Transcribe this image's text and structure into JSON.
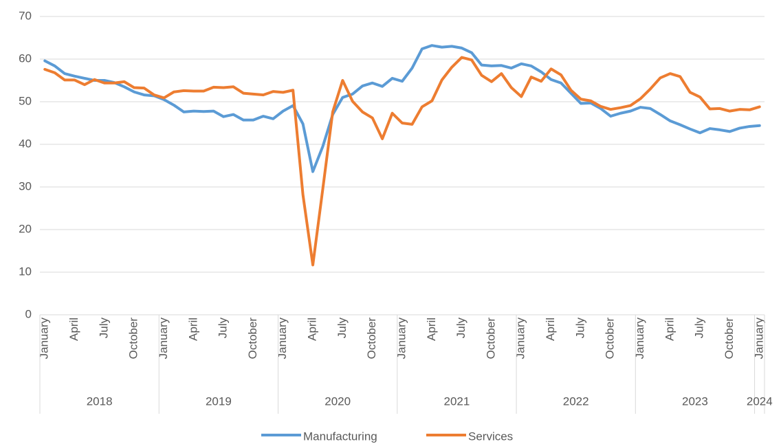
{
  "chart_data": {
    "type": "line",
    "categories": [
      "January",
      null,
      null,
      "April",
      null,
      null,
      "July",
      null,
      null,
      "October",
      null,
      null,
      "January",
      null,
      null,
      "April",
      null,
      null,
      "July",
      null,
      null,
      "October",
      null,
      null,
      "January",
      null,
      null,
      "April",
      null,
      null,
      "July",
      null,
      null,
      "October",
      null,
      null,
      "January",
      null,
      null,
      "April",
      null,
      null,
      "July",
      null,
      null,
      "October",
      null,
      null,
      "January",
      null,
      null,
      "April",
      null,
      null,
      "July",
      null,
      null,
      "October",
      null,
      null,
      "January",
      null,
      null,
      "April",
      null,
      null,
      "July",
      null,
      null,
      "October",
      null,
      null,
      "January"
    ],
    "category_groups": [
      "2018",
      "2019",
      "2020",
      "2021",
      "2022",
      "2023",
      "2024"
    ],
    "series": [
      {
        "name": "Manufacturing",
        "color": "#5b9bd5",
        "values": [
          59.6,
          58.4,
          56.6,
          56,
          55.5,
          55,
          55,
          54.5,
          53.5,
          52.3,
          51.6,
          51.4,
          50.5,
          49.2,
          47.6,
          47.8,
          47.7,
          47.8,
          46.5,
          47,
          45.7,
          45.7,
          46.6,
          46,
          47.8,
          49.1,
          44.8,
          33.6,
          39.5,
          47,
          51,
          51.8,
          53.7,
          54.4,
          53.6,
          55.5,
          54.8,
          57.9,
          62.4,
          63.2,
          62.8,
          63,
          62.6,
          61.5,
          58.6,
          58.4,
          58.5,
          57.9,
          58.9,
          58.4,
          57,
          55.2,
          54.4,
          52,
          49.6,
          49.7,
          48.4,
          46.6,
          47.3,
          47.8,
          48.7,
          48.4,
          47,
          45.5,
          44.6,
          43.6,
          42.7,
          43.7,
          43.4,
          43,
          43.8,
          44.2,
          44.4
        ]
      },
      {
        "name": "Services",
        "color": "#ed7d31",
        "values": [
          57.6,
          56.8,
          55.1,
          55.1,
          54,
          55.2,
          54.4,
          54.4,
          54.7,
          53.3,
          53.2,
          51.6,
          50.9,
          52.3,
          52.6,
          52.5,
          52.5,
          53.4,
          53.3,
          53.5,
          52,
          51.8,
          51.6,
          52.4,
          52.2,
          52.7,
          28.2,
          11.7,
          29.5,
          47.6,
          55,
          50.1,
          47.6,
          46.2,
          41.3,
          47.3,
          45,
          44.7,
          48.8,
          50.2,
          55.1,
          58.1,
          60.4,
          59.8,
          56.2,
          54.7,
          56.6,
          53.3,
          51.2,
          55.8,
          54.8,
          57.7,
          56.3,
          52.7,
          50.6,
          50.2,
          48.9,
          48.2,
          48.6,
          49.1,
          50.7,
          53,
          55.6,
          56.6,
          55.9,
          52.2,
          51.1,
          48.3,
          48.4,
          47.8,
          48.2,
          48.1,
          48.8
        ]
      }
    ],
    "ylim": [
      0,
      70
    ],
    "yticks": [
      0,
      10,
      20,
      30,
      40,
      50,
      60,
      70
    ],
    "grid": true,
    "legend": "bottom"
  }
}
